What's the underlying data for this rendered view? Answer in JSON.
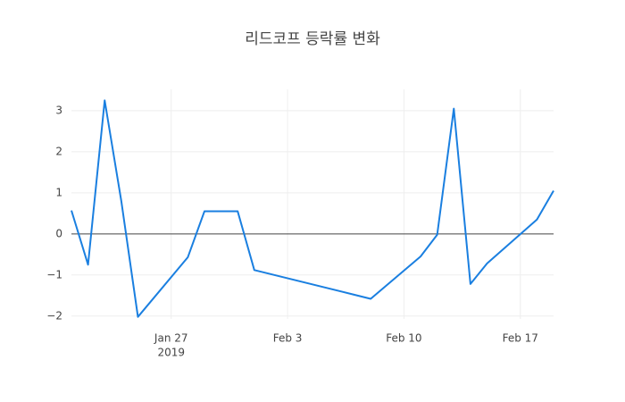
{
  "chart_data": {
    "type": "line",
    "title": "리드코프 등락률 변화",
    "x": [
      "2019-01-21",
      "2019-01-22",
      "2019-01-23",
      "2019-01-24",
      "2019-01-25",
      "2019-01-28",
      "2019-01-29",
      "2019-01-30",
      "2019-01-31",
      "2019-02-01",
      "2019-02-07",
      "2019-02-08",
      "2019-02-11",
      "2019-02-12",
      "2019-02-13",
      "2019-02-14",
      "2019-02-15",
      "2019-02-18",
      "2019-02-19"
    ],
    "series": [
      {
        "color": "#1a7fe0",
        "values": [
          0.57,
          -0.75,
          3.25,
          0.8,
          -2.02,
          -0.57,
          0.55,
          0.55,
          0.55,
          -0.88,
          -1.48,
          -1.58,
          -0.55,
          -0.02,
          3.05,
          -1.22,
          -0.72,
          0.35,
          1.05
        ]
      }
    ],
    "xlim": [
      "2019-01-21",
      "2019-02-19"
    ],
    "xticks": [
      {
        "value": "2019-01-27",
        "label": "Jan 27",
        "sublabel": "2019"
      },
      {
        "value": "2019-02-03",
        "label": "Feb 3"
      },
      {
        "value": "2019-02-10",
        "label": "Feb 10"
      },
      {
        "value": "2019-02-17",
        "label": "Feb 17"
      }
    ],
    "ylim": [
      -2.07,
      3.52
    ],
    "yticks": [
      {
        "value": -2,
        "label": "−2"
      },
      {
        "value": -1,
        "label": "−1"
      },
      0,
      1,
      2,
      3
    ],
    "grid": true,
    "zeroline": true
  }
}
